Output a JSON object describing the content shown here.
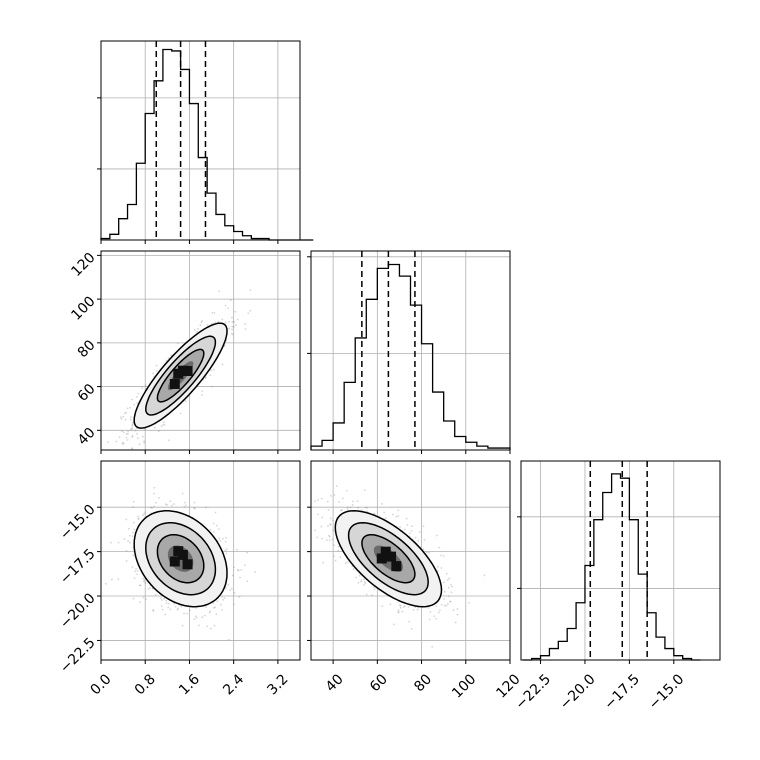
{
  "chart_data": [
    {
      "type": "histogram",
      "panel": "p0-marginal",
      "bins": [
        0.0,
        0.16,
        0.32,
        0.48,
        0.64,
        0.8,
        0.96,
        1.12,
        1.28,
        1.44,
        1.6,
        1.76,
        1.92,
        2.08,
        2.24,
        2.4,
        2.56,
        2.72,
        2.88,
        3.04,
        3.2,
        3.36,
        3.52,
        3.68,
        3.84
      ],
      "counts": [
        1,
        4,
        15,
        25,
        54,
        89,
        112,
        134,
        133,
        120,
        96,
        58,
        33,
        18,
        10,
        6,
        3,
        1,
        1,
        0,
        0,
        0,
        0,
        0
      ],
      "quantiles": [
        1.0,
        1.44,
        1.89
      ],
      "xlim": [
        0.0,
        3.6
      ],
      "ylim": [
        0,
        140
      ]
    },
    {
      "type": "scatter-density",
      "panel": "p0-vs-p1",
      "xlim": [
        0.0,
        3.6
      ],
      "ylim": [
        31,
        122
      ],
      "x_ticks": [
        "0.0",
        "0.8",
        "1.6",
        "2.4",
        "3.2"
      ],
      "x_tick_values": [
        0.0,
        0.8,
        1.6,
        2.4,
        3.2
      ],
      "y_ticks": [
        "40",
        "60",
        "80",
        "100",
        "120"
      ],
      "y_tick_values": [
        40,
        60,
        80,
        100,
        120
      ],
      "mean": [
        1.44,
        65
      ],
      "sd": [
        0.42,
        12
      ],
      "corr": 0.85
    },
    {
      "type": "histogram",
      "panel": "p1-marginal",
      "bins": [
        30,
        35,
        40,
        45,
        50,
        55,
        60,
        65,
        70,
        75,
        80,
        85,
        90,
        95,
        100,
        105,
        110,
        115,
        120
      ],
      "counts": [
        2,
        5,
        14,
        35,
        58,
        78,
        94,
        96,
        90,
        75,
        55,
        30,
        15,
        7,
        4,
        2,
        1,
        1
      ],
      "quantiles": [
        53,
        65,
        77
      ],
      "xlim": [
        30,
        120
      ],
      "ylim": [
        0,
        103
      ]
    },
    {
      "type": "scatter-density",
      "panel": "p0-vs-p2",
      "xlim": [
        0.0,
        3.6
      ],
      "ylim": [
        -23.6,
        -12.4
      ],
      "x_ticks": [
        "0.0",
        "0.8",
        "1.6",
        "2.4",
        "3.2"
      ],
      "x_tick_values": [
        0.0,
        0.8,
        1.6,
        2.4,
        3.2
      ],
      "y_ticks": [
        "−15.0",
        "−17.5",
        "−20.0",
        "−22.5"
      ],
      "y_tick_values": [
        -15.0,
        -17.5,
        -20.0,
        -22.5
      ],
      "mean": [
        1.44,
        -17.9
      ],
      "sd": [
        0.42,
        1.35
      ],
      "corr": -0.3
    },
    {
      "type": "scatter-density",
      "panel": "p1-vs-p2",
      "xlim": [
        30,
        120
      ],
      "ylim": [
        -23.6,
        -12.4
      ],
      "x_ticks": [
        "40",
        "60",
        "80",
        "100",
        "120"
      ],
      "x_tick_values": [
        40,
        60,
        80,
        100,
        120
      ],
      "mean": [
        65,
        -17.9
      ],
      "sd": [
        12,
        1.35
      ],
      "corr": -0.65
    },
    {
      "type": "histogram",
      "panel": "p2-marginal",
      "bins": [
        -23.5,
        -23.0,
        -22.5,
        -22.0,
        -21.5,
        -21.0,
        -20.5,
        -20.0,
        -19.5,
        -19.0,
        -18.5,
        -18.0,
        -17.5,
        -17.0,
        -16.5,
        -16.0,
        -15.5,
        -15.0,
        -14.5,
        -14.0,
        -13.5
      ],
      "counts": [
        0,
        1,
        3,
        8,
        13,
        22,
        40,
        66,
        98,
        117,
        130,
        127,
        98,
        60,
        33,
        16,
        8,
        3,
        1,
        0
      ],
      "quantiles": [
        -19.7,
        -17.9,
        -16.5
      ],
      "xlim": [
        -23.6,
        -12.4
      ],
      "ylim": [
        0,
        139
      ],
      "x_ticks": [
        "−22.5",
        "−20.0",
        "−17.5",
        "−15.0"
      ],
      "x_tick_values": [
        -22.5,
        -20.0,
        -17.5,
        -15.0
      ]
    }
  ]
}
